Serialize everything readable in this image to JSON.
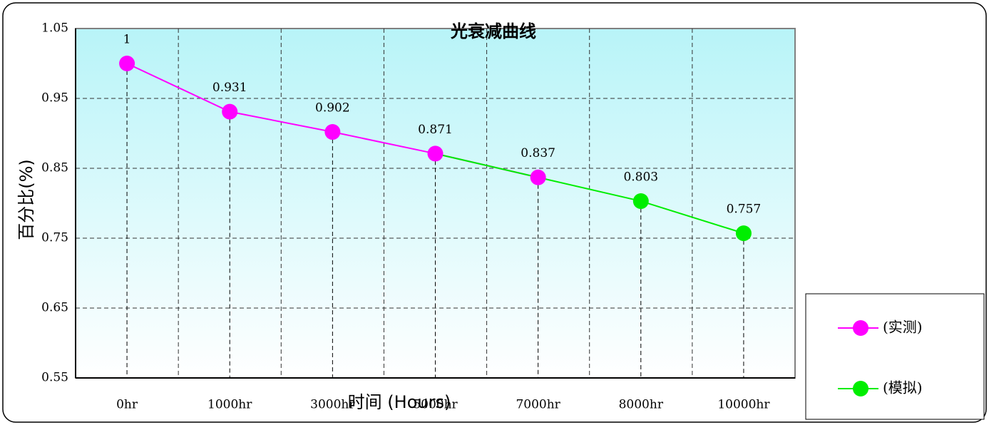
{
  "chart_data": {
    "type": "line",
    "title": "光衰减曲线",
    "x_label": "时间 (Hours)",
    "y_label": "百分比(%)",
    "categories": [
      "0hr",
      "1000hr",
      "3000hr",
      "5000hr",
      "7000hr",
      "8000hr",
      "10000hr"
    ],
    "series": [
      {
        "name": "(实测)",
        "color": "#ff00ff",
        "values": [
          1,
          0.931,
          0.902,
          0.871,
          0.837,
          null,
          null
        ]
      },
      {
        "name": "(模拟)",
        "color": "#00ee00",
        "values": [
          null,
          null,
          null,
          0.871,
          0.837,
          0.803,
          0.757
        ]
      }
    ],
    "ylim": [
      0.55,
      1.05
    ],
    "yticks": [
      0.55,
      0.65,
      0.75,
      0.85,
      0.95,
      1.05
    ],
    "grid": true,
    "legend": "right"
  }
}
